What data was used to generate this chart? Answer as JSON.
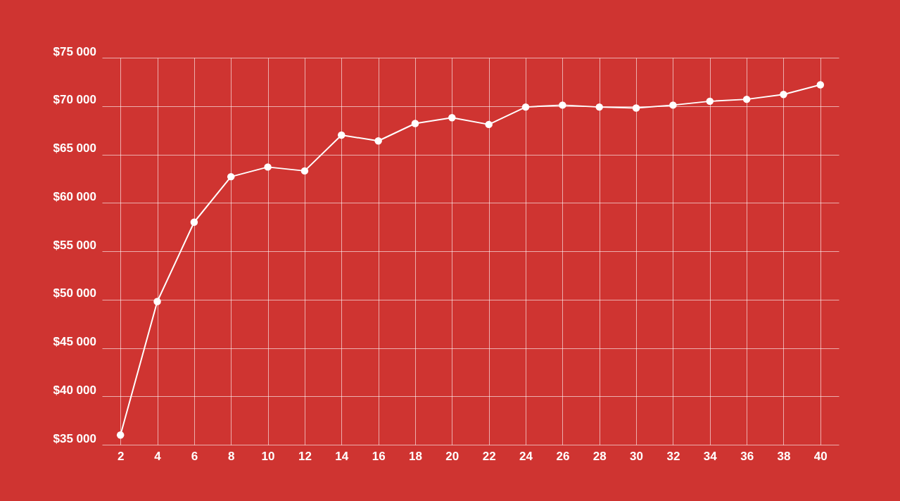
{
  "chart_data": {
    "type": "line",
    "x": [
      2,
      4,
      6,
      8,
      10,
      12,
      14,
      16,
      18,
      20,
      22,
      24,
      26,
      28,
      30,
      32,
      34,
      36,
      38,
      40
    ],
    "series": [
      {
        "color": "#ffffff",
        "values": [
          36000,
          49800,
          58000,
          62700,
          63700,
          63300,
          67000,
          66400,
          68200,
          68800,
          68100,
          69900,
          70100,
          69900,
          69800,
          70100,
          70500,
          70700,
          71200,
          72200
        ]
      }
    ],
    "xlim": [
      1,
      41
    ],
    "xticks": [
      2,
      4,
      6,
      8,
      10,
      12,
      14,
      16,
      18,
      20,
      22,
      24,
      26,
      28,
      30,
      32,
      34,
      36,
      38,
      40
    ],
    "ylim": [
      35000,
      75000
    ],
    "yticks": [
      {
        "value": 35000,
        "label": "$35 000"
      },
      {
        "value": 40000,
        "label": "$40 000"
      },
      {
        "value": 45000,
        "label": "$45 000"
      },
      {
        "value": 50000,
        "label": "$50 000"
      },
      {
        "value": 55000,
        "label": "$55 000"
      },
      {
        "value": 60000,
        "label": "$60 000"
      },
      {
        "value": 65000,
        "label": "$65 000"
      },
      {
        "value": 70000,
        "label": "$70 000"
      },
      {
        "value": 75000,
        "label": "$75 000"
      }
    ],
    "grid": true,
    "marker": "circle",
    "line_style": "solid"
  }
}
